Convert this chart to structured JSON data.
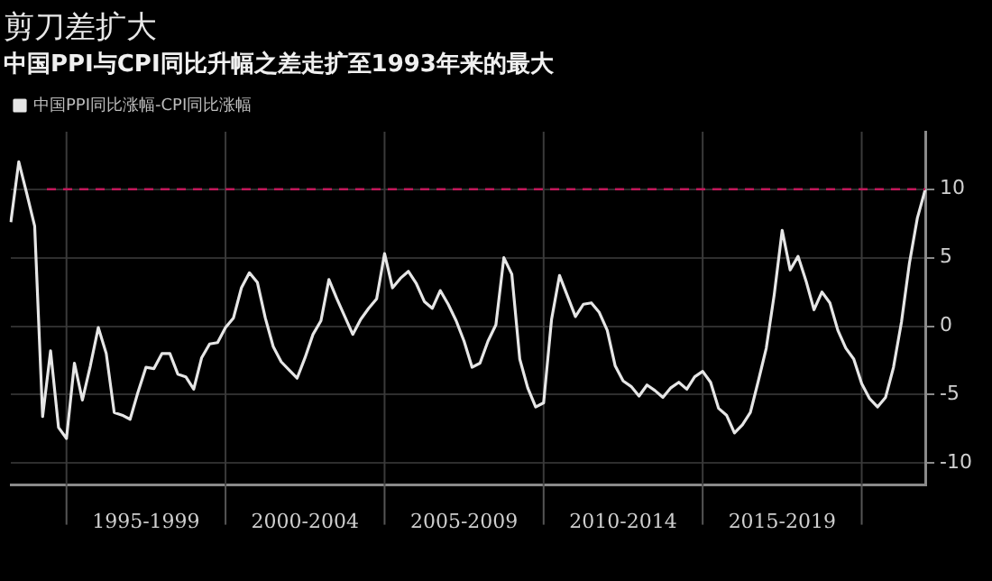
{
  "chart_data": {
    "type": "line",
    "title": "剪刀差扩大",
    "subtitle": "中国PPI与CPI同比升幅之差走扩至1993年来的最大",
    "categories": [
      null,
      null,
      null,
      null,
      null,
      null,
      null,
      null,
      null,
      null,
      null,
      null,
      null,
      null,
      null,
      null,
      null,
      "1995-1999",
      null,
      null,
      null,
      null,
      null,
      null,
      null,
      null,
      null,
      null,
      null,
      null,
      null,
      null,
      null,
      null,
      null,
      null,
      null,
      "2000-2004",
      null,
      null,
      null,
      null,
      null,
      null,
      null,
      null,
      null,
      null,
      null,
      null,
      null,
      null,
      null,
      null,
      null,
      null,
      null,
      "2005-2009",
      null,
      null,
      null,
      null,
      null,
      null,
      null,
      null,
      null,
      null,
      null,
      null,
      null,
      null,
      null,
      null,
      null,
      null,
      null,
      "2010-2014",
      null,
      null,
      null,
      null,
      null,
      null,
      null,
      null,
      null,
      null,
      null,
      null,
      null,
      null,
      null,
      null,
      null,
      null,
      null,
      "2015-2019",
      null,
      null,
      null,
      null,
      null,
      null,
      null,
      null,
      null,
      null,
      null,
      null,
      null,
      null,
      null,
      null,
      null,
      null
    ],
    "series": [
      {
        "name": "中国PPI同比涨幅-CPI同比涨幅",
        "color": "#e6e6e6",
        "values": [
          7.6,
          12.0,
          9.7,
          7.3,
          -6.6,
          -1.8,
          -7.4,
          -8.2,
          -2.7,
          -5.4,
          -2.9,
          -0.1,
          -2.0,
          -6.3,
          -6.5,
          -6.8,
          -4.8,
          -3.0,
          -3.1,
          -2.0,
          -2.0,
          -3.5,
          -3.7,
          -4.6,
          -2.3,
          -1.3,
          -1.2,
          -0.1,
          0.6,
          2.8,
          3.9,
          3.2,
          0.6,
          -1.5,
          -2.6,
          -3.2,
          -3.8,
          -2.3,
          -0.6,
          0.4,
          3.4,
          2.0,
          0.7,
          -0.6,
          0.5,
          1.3,
          2.0,
          5.3,
          2.8,
          3.5,
          4.0,
          3.1,
          1.8,
          1.3,
          2.6,
          1.6,
          0.4,
          -1.1,
          -3.0,
          -2.7,
          -1.1,
          0.1,
          5.0,
          3.8,
          -2.4,
          -4.5,
          -5.9,
          -5.6,
          0.5,
          3.7,
          2.2,
          0.7,
          1.6,
          1.7,
          1.0,
          -0.3,
          -2.9,
          -4.0,
          -4.4,
          -5.1,
          -4.3,
          -4.7,
          -5.2,
          -4.5,
          -4.1,
          -4.6,
          -3.7,
          -3.3,
          -4.1,
          -6.0,
          -6.5,
          -7.8,
          -7.2,
          -6.3,
          -4.0,
          -1.6,
          2.3,
          7.0,
          4.1,
          5.1,
          3.3,
          1.2,
          2.5,
          1.7,
          -0.3,
          -1.6,
          -2.4,
          -4.2,
          -5.3,
          -5.9,
          -5.2,
          -3.0,
          0.3,
          4.6,
          7.9,
          10.0
        ]
      }
    ],
    "ylim": [
      -11.6,
      14.2
    ],
    "yticks": [
      -10,
      -5,
      0,
      5,
      10
    ],
    "ref_lines": [
      {
        "axis": "y",
        "value": 10,
        "color": "#c2185b",
        "line_style": "dashed"
      }
    ],
    "grid": true,
    "legend": "top left",
    "marker": "none",
    "line_style": "solid"
  }
}
